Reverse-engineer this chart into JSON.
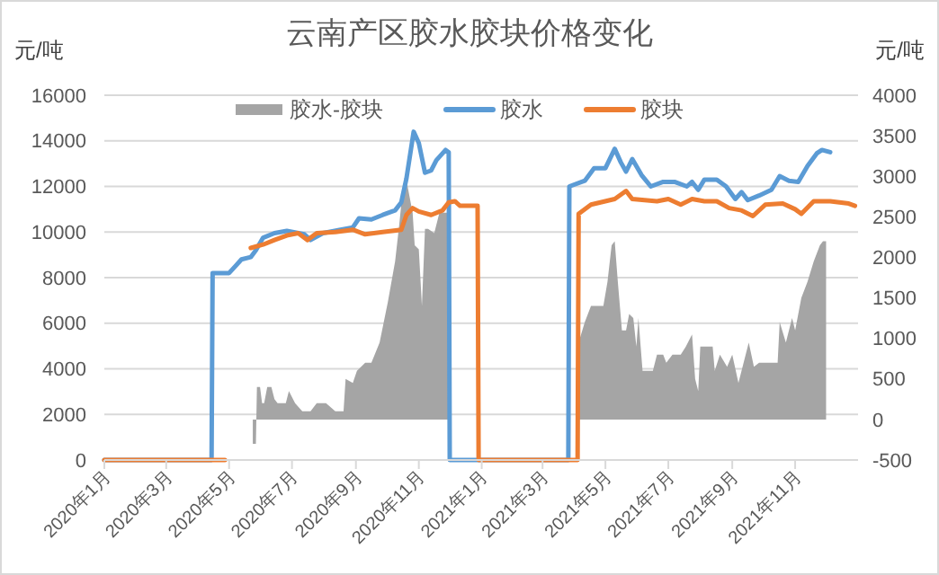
{
  "chart_data": {
    "type": "line",
    "title": "云南产区胶水胶块价格变化",
    "ylabel": "元/吨",
    "y2label": "元/吨",
    "xlim": [
      "2020-01-01",
      "2022-01-01"
    ],
    "xticks": [
      {
        "value": "2020-01",
        "label": "2020年1月"
      },
      {
        "value": "2020-03",
        "label": "2020年3月"
      },
      {
        "value": "2020-05",
        "label": "2020年5月"
      },
      {
        "value": "2020-07",
        "label": "2020年7月"
      },
      {
        "value": "2020-09",
        "label": "2020年9月"
      },
      {
        "value": "2020-11",
        "label": "2020年11月"
      },
      {
        "value": "2021-01",
        "label": "2021年1月"
      },
      {
        "value": "2021-03",
        "label": "2021年3月"
      },
      {
        "value": "2021-05",
        "label": "2021年5月"
      },
      {
        "value": "2021-07",
        "label": "2021年7月"
      },
      {
        "value": "2021-09",
        "label": "2021年9月"
      },
      {
        "value": "2021-11",
        "label": "2021年11月"
      }
    ],
    "ylim": [
      0,
      16000
    ],
    "yticks": [
      0,
      2000,
      4000,
      6000,
      8000,
      10000,
      12000,
      14000,
      16000
    ],
    "y2lim": [
      -500,
      4000
    ],
    "y2ticks": [
      -500,
      0,
      500,
      1000,
      1500,
      2000,
      2500,
      3000,
      3500,
      4000
    ],
    "grid": "y",
    "legend": "top",
    "series": [
      {
        "name": "胶水-胶块",
        "type": "area",
        "axis": "y2",
        "color": "#a5a5a5",
        "x": [
          "2020-05-24",
          "2020-05-27",
          "2020-05-28",
          "2020-05-31",
          "2020-06-02",
          "2020-06-04",
          "2020-06-07",
          "2020-06-11",
          "2020-06-14",
          "2020-06-17",
          "2020-06-22",
          "2020-06-25",
          "2020-06-28",
          "2020-07-04",
          "2020-07-11",
          "2020-07-12",
          "2020-07-14",
          "2020-07-19",
          "2020-07-25",
          "2020-07-28",
          "2020-08-03",
          "2020-08-12",
          "2020-08-20",
          "2020-08-22",
          "2020-08-29",
          "2020-09-02",
          "2020-09-10",
          "2020-09-16",
          "2020-09-24",
          "2020-10-02",
          "2020-10-09",
          "2020-10-13",
          "2020-10-17",
          "2020-10-20",
          "2020-10-26",
          "2020-10-28",
          "2020-11-01",
          "2020-11-04",
          "2020-11-07",
          "2020-11-10",
          "2020-11-16",
          "2020-11-21",
          "2020-11-24",
          "2020-11-27",
          "2020-11-30",
          "2021-01-15",
          "2021-04-05",
          "2021-04-11",
          "2021-04-17",
          "2021-04-29",
          "2021-05-03",
          "2021-05-07",
          "2021-05-10",
          "2021-05-13",
          "2021-05-17",
          "2021-05-21",
          "2021-05-24",
          "2021-05-28",
          "2021-05-31",
          "2021-06-02",
          "2021-06-06",
          "2021-06-16",
          "2021-06-20",
          "2021-06-26",
          "2021-06-29",
          "2021-07-05",
          "2021-07-13",
          "2021-07-18",
          "2021-07-22",
          "2021-07-24",
          "2021-07-27",
          "2021-07-30",
          "2021-08-01",
          "2021-08-13",
          "2021-08-15",
          "2021-08-20",
          "2021-08-27",
          "2021-09-01",
          "2021-09-07",
          "2021-09-11",
          "2021-09-17",
          "2021-09-22",
          "2021-09-27",
          "2021-10-15",
          "2021-10-17",
          "2021-10-23",
          "2021-10-29",
          "2021-11-01",
          "2021-11-07",
          "2021-11-13",
          "2021-11-19",
          "2021-11-25",
          "2021-11-28",
          "2021-12-01"
        ],
        "values": [
          -300,
          -300,
          400,
          400,
          200,
          200,
          400,
          400,
          250,
          200,
          200,
          200,
          350,
          200,
          100,
          100,
          100,
          100,
          200,
          200,
          200,
          100,
          100,
          500,
          450,
          600,
          700,
          700,
          950,
          1450,
          1950,
          2400,
          2900,
          2950,
          2550,
          2150,
          2100,
          1400,
          2350,
          2350,
          2300,
          2550,
          2550,
          2550,
          2550,
          null,
          950,
          1200,
          1400,
          1400,
          1700,
          2150,
          2200,
          1700,
          1100,
          1100,
          1300,
          1250,
          900,
          1250,
          600,
          600,
          800,
          800,
          700,
          800,
          800,
          900,
          1000,
          1050,
          500,
          350,
          900,
          900,
          600,
          800,
          650,
          800,
          450,
          650,
          950,
          650,
          700,
          700,
          1200,
          950,
          1250,
          1100,
          1500,
          1700,
          1950,
          2150,
          2200,
          2200
        ]
      },
      {
        "name": "胶水",
        "color": "#5b9bd5",
        "x": [
          "2020-01-01",
          "2020-04-14",
          "2020-04-15",
          "2020-05-01",
          "2020-05-07",
          "2020-05-13",
          "2020-05-22",
          "2020-05-27",
          "2020-06-03",
          "2020-06-14",
          "2020-06-26",
          "2020-07-13",
          "2020-07-19",
          "2020-07-31",
          "2020-08-17",
          "2020-08-29",
          "2020-09-04",
          "2020-09-16",
          "2020-09-27",
          "2020-10-09",
          "2020-10-15",
          "2020-10-20",
          "2020-10-27",
          "2020-11-01",
          "2020-11-07",
          "2020-11-13",
          "2020-11-18",
          "2020-11-27",
          "2020-11-30",
          "2020-12-01",
          "2021-03-26",
          "2021-03-27",
          "2021-04-11",
          "2021-04-20",
          "2021-05-01",
          "2021-05-10",
          "2021-05-16",
          "2021-05-21",
          "2021-05-27",
          "2021-06-05",
          "2021-06-14",
          "2021-06-26",
          "2021-07-07",
          "2021-07-19",
          "2021-07-24",
          "2021-07-30",
          "2021-08-05",
          "2021-08-17",
          "2021-08-26",
          "2021-09-04",
          "2021-09-10",
          "2021-09-16",
          "2021-09-27",
          "2021-10-09",
          "2021-10-17",
          "2021-10-26",
          "2021-11-04",
          "2021-11-13",
          "2021-11-22",
          "2021-11-27",
          "2021-12-05"
        ],
        "values": [
          0,
          0,
          8200,
          8200,
          8500,
          8800,
          8900,
          9200,
          9750,
          9950,
          10050,
          9900,
          9650,
          9950,
          10100,
          10200,
          10600,
          10550,
          10750,
          10950,
          11300,
          12350,
          14400,
          13900,
          12600,
          12700,
          13150,
          13600,
          13500,
          0,
          0,
          12000,
          12250,
          12800,
          12800,
          13650,
          13050,
          12650,
          13200,
          12500,
          12000,
          12200,
          12200,
          12000,
          12200,
          11850,
          12300,
          12300,
          12000,
          11450,
          11750,
          11400,
          11600,
          11850,
          12450,
          12250,
          12200,
          12900,
          13450,
          13600,
          13500
        ]
      },
      {
        "name": "胶块",
        "color": "#ed7d31",
        "x": [
          "2020-01-01",
          "2020-04-27",
          "2020-05-10",
          "2020-05-22",
          "2020-06-03",
          "2020-06-14",
          "2020-06-26",
          "2020-07-07",
          "2020-07-16",
          "2020-07-25",
          "2020-08-12",
          "2020-08-29",
          "2020-09-10",
          "2020-09-27",
          "2020-10-15",
          "2020-10-20",
          "2020-10-26",
          "2020-11-01",
          "2020-11-13",
          "2020-11-24",
          "2020-11-30",
          "2020-12-06",
          "2020-12-11",
          "2020-12-23",
          "2020-12-28",
          "2020-12-29",
          "2021-04-04",
          "2021-04-05",
          "2021-04-17",
          "2021-05-10",
          "2021-05-21",
          "2021-05-27",
          "2021-06-08",
          "2021-06-20",
          "2021-07-01",
          "2021-07-13",
          "2021-07-24",
          "2021-08-05",
          "2021-08-17",
          "2021-08-29",
          "2021-09-10",
          "2021-09-21",
          "2021-10-03",
          "2021-10-20",
          "2021-11-01",
          "2021-11-07",
          "2021-11-19",
          "2021-12-05",
          "2021-12-23",
          "2021-12-29"
        ],
        "values": [
          0,
          0,
          null,
          9300,
          9450,
          9650,
          9850,
          9950,
          9650,
          9950,
          10000,
          10100,
          9900,
          10000,
          10100,
          10750,
          11050,
          10900,
          10750,
          10950,
          11300,
          11350,
          11150,
          11150,
          11150,
          0,
          0,
          10800,
          11200,
          11450,
          11800,
          11450,
          11400,
          11350,
          11450,
          11200,
          11450,
          11350,
          11350,
          11050,
          10950,
          10700,
          11200,
          11250,
          11000,
          10800,
          11350,
          11350,
          11250,
          11150
        ]
      }
    ]
  }
}
